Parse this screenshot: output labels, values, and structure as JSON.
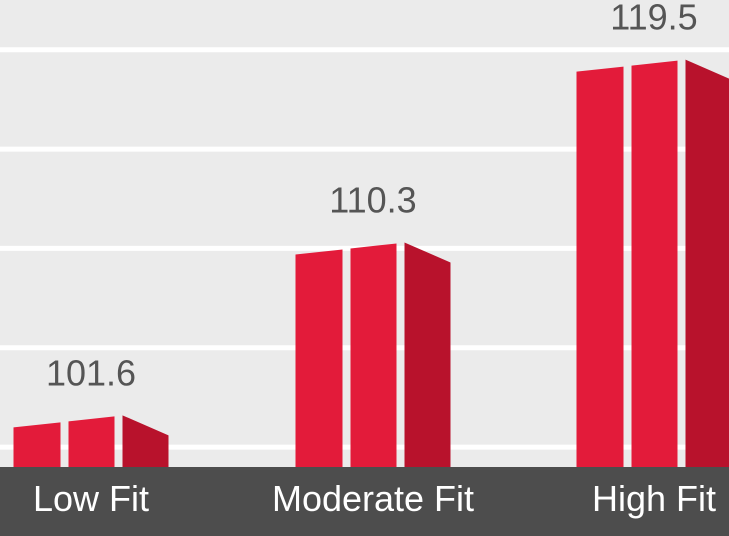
{
  "chart_data": {
    "type": "bar",
    "categories": [
      "Low Fit",
      "Moderate Fit",
      "High Fit"
    ],
    "values": [
      101.6,
      110.3,
      119.5
    ],
    "data_labels": [
      "101.6",
      "110.3",
      "119.5"
    ],
    "ylim": [
      99,
      122
    ],
    "grid": true,
    "legend": "none",
    "colors": {
      "background": "#ebebeb",
      "gridline": "#ffffff",
      "bar_front": "#e31b3a",
      "bar_side": "#b8122c",
      "axis_band": "#4d4d4d",
      "category_text": "#ffffff",
      "value_text": "#555555"
    }
  }
}
